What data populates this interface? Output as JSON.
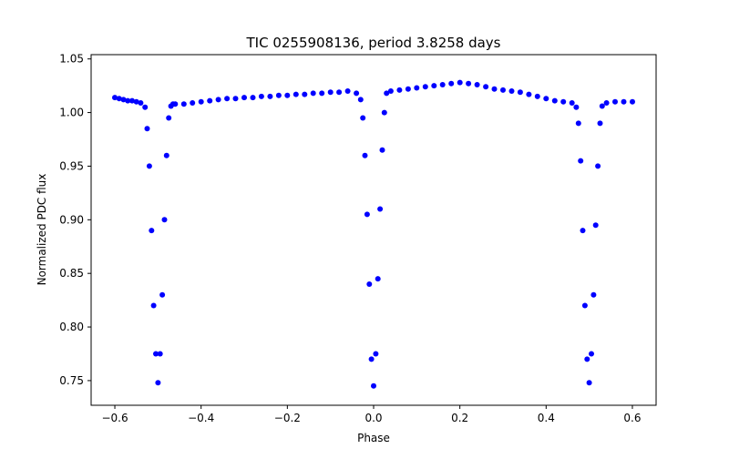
{
  "chart_data": {
    "type": "scatter",
    "title": "TIC 0255908136, period 3.8258 days",
    "xlabel": "Phase",
    "ylabel": "Normalized PDC flux",
    "xlim": [
      -0.655,
      0.655
    ],
    "ylim": [
      0.727,
      1.054
    ],
    "xticks": [
      -0.6,
      -0.4,
      -0.2,
      0.0,
      0.2,
      0.4,
      0.6
    ],
    "xtick_labels": [
      "−0.6",
      "−0.4",
      "−0.2",
      "0.0",
      "0.2",
      "0.4",
      "0.6"
    ],
    "yticks": [
      0.75,
      0.8,
      0.85,
      0.9,
      0.95,
      1.0,
      1.05
    ],
    "ytick_labels": [
      "0.75",
      "0.80",
      "0.85",
      "0.90",
      "0.95",
      "1.00",
      "1.05"
    ],
    "grid": false,
    "marker_color": "#0000ff",
    "series": [
      {
        "x": [
          -0.6,
          -0.59,
          -0.58,
          -0.57,
          -0.56,
          -0.55,
          -0.54,
          -0.53,
          -0.525,
          -0.52,
          -0.515,
          -0.51,
          -0.505,
          -0.5,
          -0.495,
          -0.49,
          -0.485,
          -0.48,
          -0.475,
          -0.47,
          -0.465,
          -0.46,
          -0.44,
          -0.42,
          -0.4,
          -0.38,
          -0.36,
          -0.34,
          -0.32,
          -0.3,
          -0.28,
          -0.26,
          -0.24,
          -0.22,
          -0.2,
          -0.18,
          -0.16,
          -0.14,
          -0.12,
          -0.1,
          -0.08,
          -0.06,
          -0.04,
          -0.03,
          -0.025,
          -0.02,
          -0.015,
          -0.01,
          -0.005,
          0.0,
          0.005,
          0.01,
          0.015,
          0.02,
          0.025,
          0.03,
          0.04,
          0.06,
          0.08,
          0.1,
          0.12,
          0.14,
          0.16,
          0.18,
          0.2,
          0.22,
          0.24,
          0.26,
          0.28,
          0.3,
          0.32,
          0.34,
          0.36,
          0.38,
          0.4,
          0.42,
          0.44,
          0.46,
          0.47,
          0.475,
          0.48,
          0.485,
          0.49,
          0.495,
          0.5,
          0.505,
          0.51,
          0.515,
          0.52,
          0.525,
          0.53,
          0.54,
          0.56,
          0.58,
          0.6
        ],
        "y": [
          1.014,
          1.013,
          1.012,
          1.011,
          1.011,
          1.01,
          1.009,
          1.005,
          0.985,
          0.95,
          0.89,
          0.82,
          0.775,
          0.748,
          0.775,
          0.83,
          0.9,
          0.96,
          0.995,
          1.006,
          1.008,
          1.008,
          1.008,
          1.009,
          1.01,
          1.011,
          1.012,
          1.013,
          1.013,
          1.014,
          1.014,
          1.015,
          1.015,
          1.016,
          1.016,
          1.017,
          1.017,
          1.018,
          1.018,
          1.019,
          1.019,
          1.02,
          1.018,
          1.012,
          0.995,
          0.96,
          0.905,
          0.84,
          0.77,
          0.745,
          0.775,
          0.845,
          0.91,
          0.965,
          1.0,
          1.018,
          1.02,
          1.021,
          1.022,
          1.023,
          1.024,
          1.025,
          1.026,
          1.027,
          1.028,
          1.027,
          1.026,
          1.024,
          1.022,
          1.021,
          1.02,
          1.019,
          1.017,
          1.015,
          1.013,
          1.011,
          1.01,
          1.009,
          1.005,
          0.99,
          0.955,
          0.89,
          0.82,
          0.77,
          0.748,
          0.775,
          0.83,
          0.895,
          0.95,
          0.99,
          1.006,
          1.009,
          1.01,
          1.01,
          1.01
        ]
      }
    ]
  }
}
